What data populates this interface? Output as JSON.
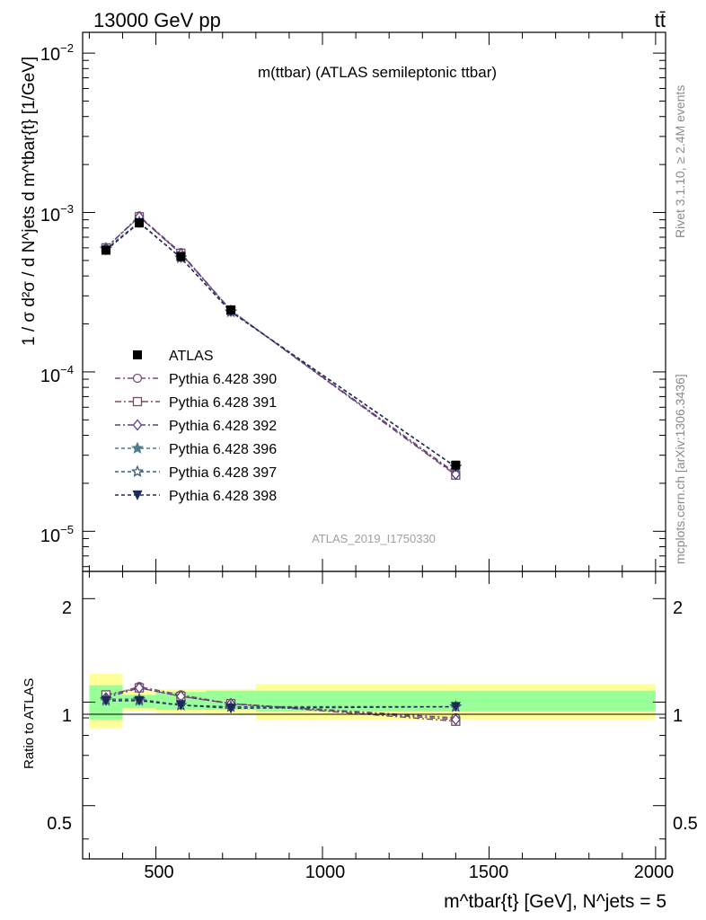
{
  "header": {
    "energy_label": "13000 GeV pp",
    "process_label": "tt̄",
    "plot_title": "m(ttbar) (ATLAS semileptonic ttbar)",
    "analysis_id": "ATLAS_2019_I1750330",
    "rivet_label": "Rivet 3.1.10, ≥ 2.4M events",
    "mcplots_label": "mcplots.cern.ch [arXiv:1306.3436]"
  },
  "axes": {
    "main_ylabel": "1 / σ d²σ / d N^jets d m^tbar{t} [1/GeV]",
    "ratio_ylabel": "Ratio to ATLAS",
    "xlabel": "m^tbar{t} [GeV], N^jets = 5",
    "x_ticks": [
      "500",
      "1000",
      "1500",
      "2000"
    ],
    "main_y_ticks": [
      {
        "base": "10",
        "exp": "−2"
      },
      {
        "base": "10",
        "exp": "−3"
      },
      {
        "base": "10",
        "exp": "−4"
      },
      {
        "base": "10",
        "exp": "−5"
      }
    ],
    "ratio_y_ticks": [
      "2",
      "1",
      "0.5"
    ]
  },
  "chart_data": {
    "type": "line",
    "x_scale": "linear",
    "y_scale": "log",
    "xlim": [
      280,
      2030
    ],
    "ylim": [
      5.6e-06,
      0.0135
    ],
    "ratio_ylim": [
      0.35,
      2.4
    ],
    "ratio_y_scale": "log",
    "grid": false,
    "legend_placement": "left-middle",
    "bins": [
      [
        300,
        400
      ],
      [
        400,
        500
      ],
      [
        500,
        650
      ],
      [
        650,
        800
      ],
      [
        800,
        2000
      ]
    ],
    "x": [
      350,
      450,
      575,
      725,
      1400
    ],
    "reference": {
      "name": "ATLAS",
      "values": [
        0.00058,
        0.00086,
        0.00053,
        0.000245,
        2.6e-05
      ],
      "ratio_band_inner": [
        [
          0.89,
          1.12
        ],
        [
          0.96,
          1.05
        ],
        [
          0.95,
          1.07
        ],
        [
          0.95,
          1.08
        ],
        [
          0.94,
          1.08
        ]
      ],
      "ratio_band_outer": [
        [
          0.84,
          1.21
        ],
        [
          0.94,
          1.08
        ],
        [
          0.93,
          1.09
        ],
        [
          0.92,
          1.09
        ],
        [
          0.89,
          1.13
        ]
      ]
    },
    "series": [
      {
        "name": "Pythia 6.428 390",
        "color": "#7b4d79",
        "marker": "circle-open",
        "dash": "6,3,2,3",
        "values": [
          0.0006,
          0.00095,
          0.00056,
          0.000243,
          2.32e-05
        ],
        "ratio": [
          1.04,
          1.11,
          1.05,
          0.99,
          0.9
        ]
      },
      {
        "name": "Pythia 6.428 391",
        "color": "#7b4d5b",
        "marker": "square-open",
        "dash": "7,3,2,3",
        "values": [
          0.0006,
          0.00094,
          0.000555,
          0.000243,
          2.25e-05
        ],
        "ratio": [
          1.05,
          1.1,
          1.04,
          0.99,
          0.88
        ]
      },
      {
        "name": "Pythia 6.428 392",
        "color": "#5b3f8a",
        "marker": "diamond-open",
        "dash": "6,3,2,3",
        "values": [
          0.0006,
          0.00094,
          0.00055,
          0.000243,
          2.28e-05
        ],
        "ratio": [
          1.03,
          1.1,
          1.04,
          0.99,
          0.89
        ]
      },
      {
        "name": "Pythia 6.428 396",
        "color": "#4f7e8c",
        "marker": "star-filled",
        "dash": "4,3",
        "values": [
          0.00059,
          0.00087,
          0.00052,
          0.000239,
          2.54e-05
        ],
        "ratio": [
          1.01,
          1.01,
          0.98,
          0.97,
          0.97
        ]
      },
      {
        "name": "Pythia 6.428 397",
        "color": "#3d5a7a",
        "marker": "star-open",
        "dash": "4,3",
        "values": [
          0.00059,
          0.00087,
          0.00052,
          0.000238,
          2.53e-05
        ],
        "ratio": [
          1.02,
          1.02,
          0.98,
          0.97,
          0.97
        ]
      },
      {
        "name": "Pythia 6.428 398",
        "color": "#1e2a55",
        "marker": "triangle-down-filled",
        "dash": "4,3",
        "values": [
          0.00058,
          0.00086,
          0.00052,
          0.000238,
          2.53e-05
        ],
        "ratio": [
          1.01,
          1.01,
          0.98,
          0.96,
          0.97
        ]
      }
    ]
  }
}
